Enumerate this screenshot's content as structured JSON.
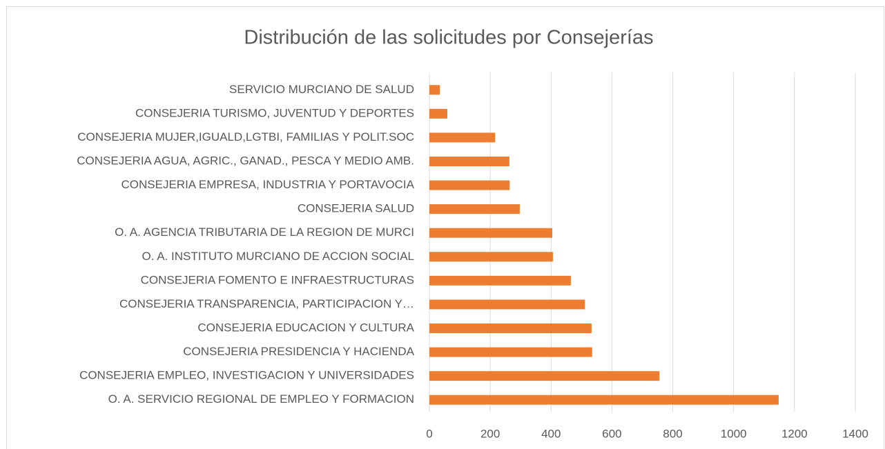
{
  "chart_data": {
    "type": "barh",
    "title": "Distribución de las solicitudes por Consejerías",
    "categories": [
      "SERVICIO MURCIANO DE SALUD",
      "CONSEJERIA TURISMO, JUVENTUD Y DEPORTES",
      "CONSEJERIA MUJER,IGUALD,LGTBI, FAMILIAS Y POLIT.SOC",
      "CONSEJERIA AGUA, AGRIC., GANAD., PESCA Y MEDIO AMB.",
      "CONSEJERIA EMPRESA, INDUSTRIA Y PORTAVOCIA",
      "CONSEJERIA SALUD",
      "O. A. AGENCIA TRIBUTARIA DE LA REGION DE MURCI",
      "O. A. INSTITUTO MURCIANO DE ACCION SOCIAL",
      "CONSEJERIA FOMENTO E INFRAESTRUCTURAS",
      "CONSEJERIA TRANSPARENCIA, PARTICIPACION Y…",
      "CONSEJERIA EDUCACION Y CULTURA",
      "CONSEJERIA PRESIDENCIA Y HACIENDA",
      "CONSEJERIA EMPLEO, INVESTIGACION Y UNIVERSIDADES",
      "O. A. SERVICIO REGIONAL DE EMPLEO Y FORMACION"
    ],
    "values": [
      34,
      59,
      216,
      263,
      264,
      297,
      404,
      406,
      465,
      511,
      533,
      535,
      756,
      1148
    ],
    "color": "#ed7d31",
    "xlim": [
      0,
      1400
    ],
    "xticks": [
      0,
      200,
      400,
      600,
      800,
      1000,
      1200,
      1400
    ],
    "grid": true
  }
}
